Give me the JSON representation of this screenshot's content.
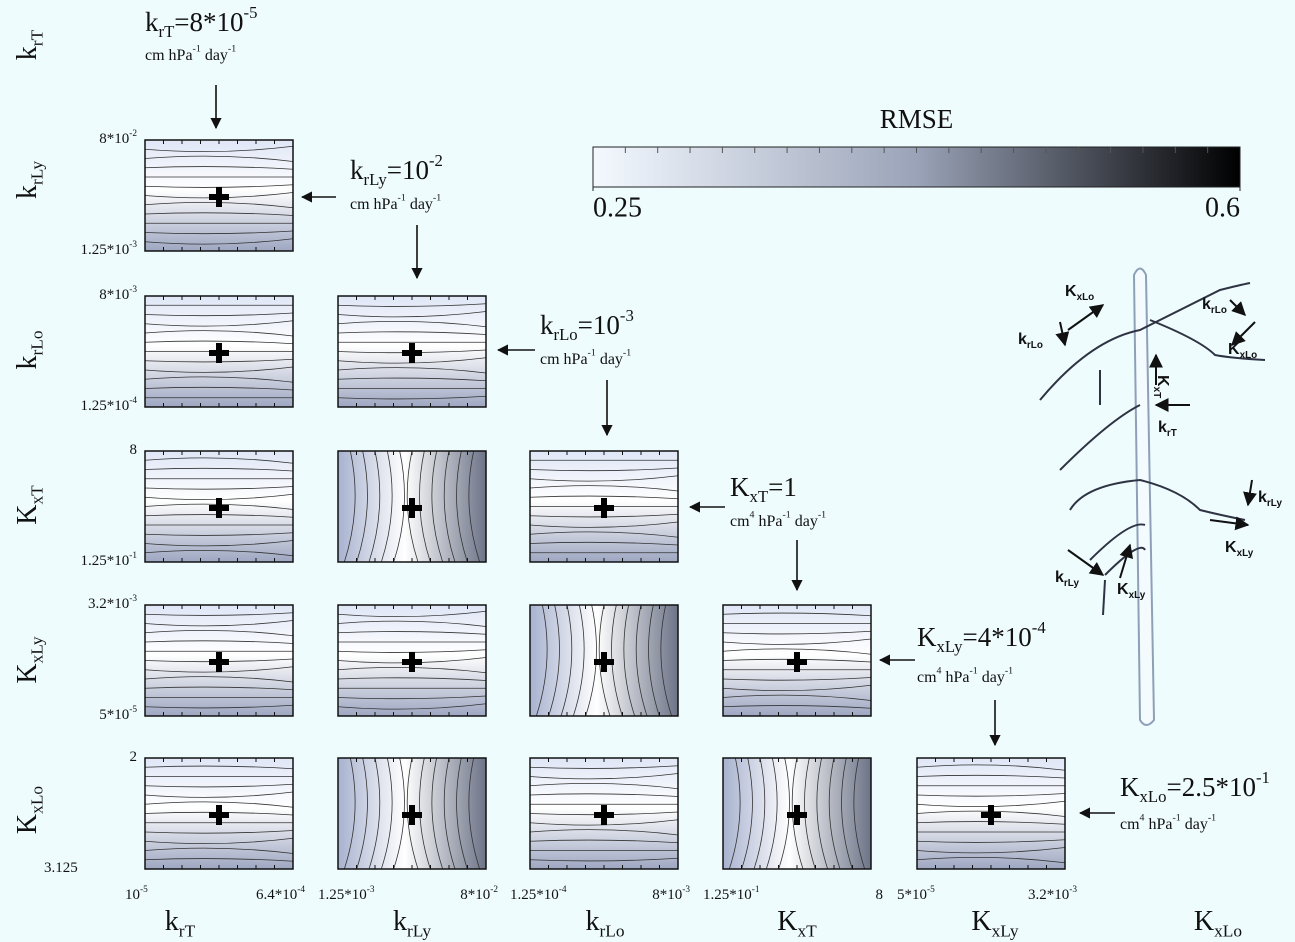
{
  "row_labels": [
    [
      {
        "text": "k"
      },
      {
        "text": "rT",
        "style": "sub"
      }
    ],
    [
      {
        "text": "k"
      },
      {
        "text": "rLy",
        "style": "sub"
      }
    ],
    [
      {
        "text": "k"
      },
      {
        "text": "rLo",
        "style": "sub"
      }
    ],
    [
      {
        "text": "K"
      },
      {
        "text": "xT",
        "style": "sub"
      }
    ],
    [
      {
        "text": "K"
      },
      {
        "text": "xLy",
        "style": "sub"
      }
    ],
    [
      {
        "text": "K"
      },
      {
        "text": "xLo",
        "style": "sub"
      }
    ]
  ],
  "column_labels": [
    [
      {
        "text": "k"
      },
      {
        "text": "rT",
        "style": "sub"
      }
    ],
    [
      {
        "text": "k"
      },
      {
        "text": "rLy",
        "style": "sub"
      }
    ],
    [
      {
        "text": "k"
      },
      {
        "text": "rLo",
        "style": "sub"
      }
    ],
    [
      {
        "text": "K"
      },
      {
        "text": "xT",
        "style": "sub"
      }
    ],
    [
      {
        "text": "K"
      },
      {
        "text": "xLy",
        "style": "sub"
      }
    ],
    [
      {
        "text": "K"
      },
      {
        "text": "xLo",
        "style": "sub"
      }
    ]
  ],
  "row_ticks": [
    {
      "top": [
        {
          "text": "8*10"
        },
        {
          "text": "-2",
          "style": "sup"
        }
      ],
      "bottom": [
        {
          "text": "1.25*10"
        },
        {
          "text": "-3",
          "style": "sup"
        }
      ]
    },
    {
      "top": [
        {
          "text": "8*10"
        },
        {
          "text": "-3",
          "style": "sup"
        }
      ],
      "bottom": [
        {
          "text": "1.25*10"
        },
        {
          "text": "-4",
          "style": "sup"
        }
      ]
    },
    {
      "top": [
        {
          "text": "8"
        }
      ],
      "bottom": [
        {
          "text": "1.25*10"
        },
        {
          "text": "-1",
          "style": "sup"
        }
      ]
    },
    {
      "top": [
        {
          "text": "3.2*10"
        },
        {
          "text": "-3",
          "style": "sup"
        }
      ],
      "bottom": [
        {
          "text": "5*10"
        },
        {
          "text": "-5",
          "style": "sup"
        }
      ]
    },
    {
      "top": [
        {
          "text": "2"
        }
      ],
      "bottom": [
        {
          "text": "3.125"
        }
      ]
    }
  ],
  "column_ticks": [
    {
      "left": [
        {
          "text": "10"
        },
        {
          "text": "-5",
          "style": "sup"
        }
      ],
      "right": [
        {
          "text": "6.4*10"
        },
        {
          "text": "-4",
          "style": "sup"
        }
      ]
    },
    {
      "left": [
        {
          "text": "1.25*10"
        },
        {
          "text": "-3",
          "style": "sup"
        }
      ],
      "right": [
        {
          "text": "8*10"
        },
        {
          "text": "-2",
          "style": "sup"
        }
      ]
    },
    {
      "left": [
        {
          "text": "1.25*10"
        },
        {
          "text": "-4",
          "style": "sup"
        }
      ],
      "right": [
        {
          "text": "8*10"
        },
        {
          "text": "-3",
          "style": "sup"
        }
      ]
    },
    {
      "left": [
        {
          "text": "1.25*10"
        },
        {
          "text": "-1",
          "style": "sup"
        }
      ],
      "right": [
        {
          "text": "8"
        }
      ]
    },
    {
      "left": [
        {
          "text": "5*10"
        },
        {
          "text": "-5",
          "style": "sup"
        }
      ],
      "right": [
        {
          "text": "3.2*10"
        },
        {
          "text": "-3",
          "style": "sup"
        }
      ]
    }
  ],
  "annotations": [
    {
      "label": [
        {
          "text": "k"
        },
        {
          "text": "rT",
          "style": "sub"
        },
        {
          "text": "=8*10"
        },
        {
          "text": "-5",
          "style": "sup"
        }
      ],
      "units": [
        {
          "text": "cm hPa"
        },
        {
          "text": "-1",
          "style": "sup"
        },
        {
          "text": " day"
        },
        {
          "text": "-1",
          "style": "sup"
        }
      ]
    },
    {
      "label": [
        {
          "text": "k"
        },
        {
          "text": "rLy",
          "style": "sub"
        },
        {
          "text": "=10"
        },
        {
          "text": "-2",
          "style": "sup"
        }
      ],
      "units": [
        {
          "text": "cm hPa"
        },
        {
          "text": "-1",
          "style": "sup"
        },
        {
          "text": " day"
        },
        {
          "text": "-1",
          "style": "sup"
        }
      ]
    },
    {
      "label": [
        {
          "text": "k"
        },
        {
          "text": "rLo",
          "style": "sub"
        },
        {
          "text": "=10"
        },
        {
          "text": "-3",
          "style": "sup"
        }
      ],
      "units": [
        {
          "text": "cm hPa"
        },
        {
          "text": "-1",
          "style": "sup"
        },
        {
          "text": " day"
        },
        {
          "text": "-1",
          "style": "sup"
        }
      ]
    },
    {
      "label": [
        {
          "text": "K"
        },
        {
          "text": "xT",
          "style": "sub"
        },
        {
          "text": "=1"
        }
      ],
      "units": [
        {
          "text": "cm"
        },
        {
          "text": "4",
          "style": "sup"
        },
        {
          "text": " hPa"
        },
        {
          "text": "-1",
          "style": "sup"
        },
        {
          "text": " day"
        },
        {
          "text": "-1",
          "style": "sup"
        }
      ]
    },
    {
      "label": [
        {
          "text": "K"
        },
        {
          "text": "xLy",
          "style": "sub"
        },
        {
          "text": "=4*10"
        },
        {
          "text": "-4",
          "style": "sup"
        }
      ],
      "units": [
        {
          "text": "cm"
        },
        {
          "text": "4",
          "style": "sup"
        },
        {
          "text": " hPa"
        },
        {
          "text": "-1",
          "style": "sup"
        },
        {
          "text": " day"
        },
        {
          "text": "-1",
          "style": "sup"
        }
      ]
    },
    {
      "label": [
        {
          "text": "K"
        },
        {
          "text": "xLo",
          "style": "sub"
        },
        {
          "text": "=2.5*10"
        },
        {
          "text": "-1",
          "style": "sup"
        }
      ],
      "units": [
        {
          "text": "cm"
        },
        {
          "text": "4",
          "style": "sup"
        },
        {
          "text": " hPa"
        },
        {
          "text": "-1",
          "style": "sup"
        },
        {
          "text": " day"
        },
        {
          "text": "-1",
          "style": "sup"
        }
      ]
    }
  ],
  "colorbar": {
    "label": "RMSE",
    "lim": [
      0.25,
      0.6
    ],
    "ticks": [
      0.25,
      0.6
    ],
    "colors": [
      "#f4f9ff",
      "#9aa3b8",
      "#000000"
    ]
  },
  "root_labels": [
    [
      {
        "text": "K"
      },
      {
        "text": "xLo",
        "style": "sub"
      }
    ],
    [
      {
        "text": "k"
      },
      {
        "text": "rLo",
        "style": "sub"
      }
    ],
    [
      {
        "text": "k"
      },
      {
        "text": "rLo",
        "style": "sub"
      }
    ],
    [
      {
        "text": "K"
      },
      {
        "text": "xLo",
        "style": "sub"
      }
    ],
    [
      {
        "text": "K"
      },
      {
        "text": "xT",
        "style": "sub"
      }
    ],
    [
      {
        "text": "k"
      },
      {
        "text": "rT",
        "style": "sub"
      }
    ],
    [
      {
        "text": "k"
      },
      {
        "text": "rLy",
        "style": "sub"
      }
    ],
    [
      {
        "text": "K"
      },
      {
        "text": "xLy",
        "style": "sub"
      }
    ],
    [
      {
        "text": "k"
      },
      {
        "text": "rLy",
        "style": "sub"
      }
    ],
    [
      {
        "text": "K"
      },
      {
        "text": "xLy",
        "style": "sub"
      }
    ]
  ]
}
